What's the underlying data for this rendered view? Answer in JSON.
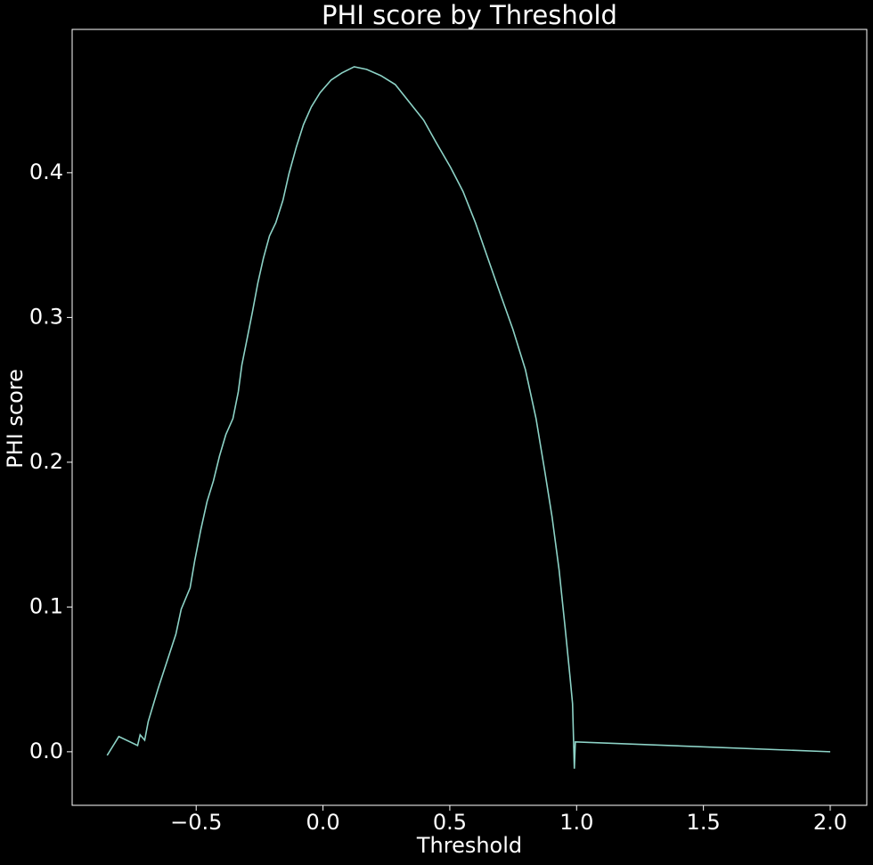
{
  "chart_data": {
    "type": "line",
    "title": "PHI score by Threshold",
    "x_label": "Threshold",
    "y_label": "PHI score",
    "x": [
      -0.851,
      -0.805,
      -0.731,
      -0.721,
      -0.703,
      -0.689,
      -0.65,
      -0.58,
      -0.559,
      -0.524,
      -0.506,
      -0.482,
      -0.457,
      -0.432,
      -0.408,
      -0.383,
      -0.355,
      -0.334,
      -0.32,
      -0.299,
      -0.278,
      -0.257,
      -0.235,
      -0.211,
      -0.186,
      -0.158,
      -0.134,
      -0.105,
      -0.077,
      -0.046,
      -0.011,
      0.032,
      0.074,
      0.123,
      0.172,
      0.228,
      0.285,
      0.341,
      0.397,
      0.446,
      0.503,
      0.552,
      0.601,
      0.65,
      0.699,
      0.749,
      0.798,
      0.84,
      0.875,
      0.903,
      0.931,
      0.953,
      0.974,
      0.984,
      0.991,
      0.995,
      2.0
    ],
    "series": [
      {
        "name": "PHI score",
        "color": "#8dd3c7",
        "values": [
          -0.0025,
          0.0105,
          0.0043,
          0.0117,
          0.008,
          0.0209,
          0.0437,
          0.0812,
          0.0985,
          0.1132,
          0.1317,
          0.1532,
          0.1729,
          0.1871,
          0.2043,
          0.2191,
          0.2302,
          0.2486,
          0.2671,
          0.2855,
          0.304,
          0.3237,
          0.3409,
          0.3563,
          0.3655,
          0.3809,
          0.3994,
          0.4178,
          0.4332,
          0.4455,
          0.4554,
          0.464,
          0.4689,
          0.4732,
          0.4714,
          0.4671,
          0.4609,
          0.4486,
          0.4363,
          0.4209,
          0.4037,
          0.3871,
          0.3655,
          0.3409,
          0.3163,
          0.2917,
          0.264,
          0.2302,
          0.1932,
          0.1625,
          0.1255,
          0.0886,
          0.0517,
          0.0332,
          -0.0117,
          0.0068,
          0.0
        ]
      }
    ],
    "xlim": [
      -0.989,
      2.144
    ],
    "ylim": [
      -0.037,
      0.499
    ],
    "xticks": [
      {
        "value": -0.5,
        "label": "−0.5"
      },
      {
        "value": 0,
        "label": "0.0"
      },
      0.5,
      {
        "value": 1,
        "label": "1.0"
      },
      1.5,
      {
        "value": 2,
        "label": "2.0"
      }
    ],
    "yticks": [
      {
        "value": 0,
        "label": "0.0"
      },
      0.1,
      0.2,
      0.3,
      0.4
    ],
    "grid": false
  }
}
